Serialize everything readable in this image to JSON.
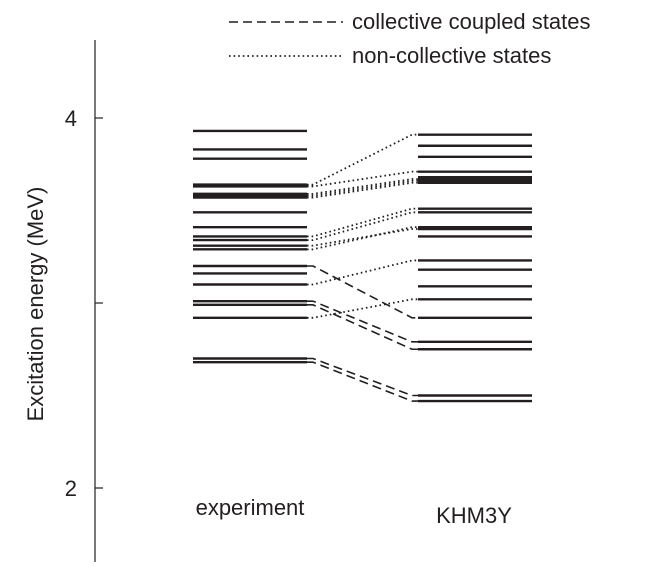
{
  "chart_data": {
    "type": "level-scheme",
    "ylabel": "Excitation energy (MeV)",
    "yticks": [
      2,
      3,
      4
    ],
    "ytick_labels": [
      "2",
      "",
      "4"
    ],
    "ylim": [
      1.65,
      4.4
    ],
    "legend": [
      {
        "style": "dashed",
        "label": "collective coupled states"
      },
      {
        "style": "dotted",
        "label": "non-collective states"
      }
    ],
    "columns": [
      {
        "label": "experiment",
        "levels": [
          2.68,
          2.7,
          2.92,
          2.99,
          3.01,
          3.1,
          3.16,
          3.2,
          3.29,
          3.31,
          3.34,
          3.36,
          3.41,
          3.49,
          3.57,
          3.58,
          3.59,
          3.63,
          3.64,
          3.78,
          3.83,
          3.93
        ]
      },
      {
        "label": "KHM3Y",
        "levels": [
          2.47,
          2.5,
          2.75,
          2.79,
          2.92,
          3.02,
          3.09,
          3.18,
          3.23,
          3.36,
          3.4,
          3.41,
          3.49,
          3.51,
          3.65,
          3.66,
          3.67,
          3.68,
          3.71,
          3.79,
          3.85,
          3.91
        ]
      }
    ],
    "connections": {
      "dashed": [
        [
          0,
          0
        ],
        [
          1,
          1
        ],
        [
          3,
          2
        ],
        [
          4,
          3
        ],
        [
          7,
          4
        ]
      ],
      "dotted": [
        [
          2,
          5
        ],
        [
          5,
          8
        ],
        [
          8,
          11
        ],
        [
          9,
          10
        ],
        [
          10,
          12
        ],
        [
          11,
          13
        ],
        [
          14,
          14
        ],
        [
          15,
          15
        ],
        [
          16,
          16
        ],
        [
          17,
          18
        ],
        [
          18,
          21
        ]
      ]
    }
  }
}
